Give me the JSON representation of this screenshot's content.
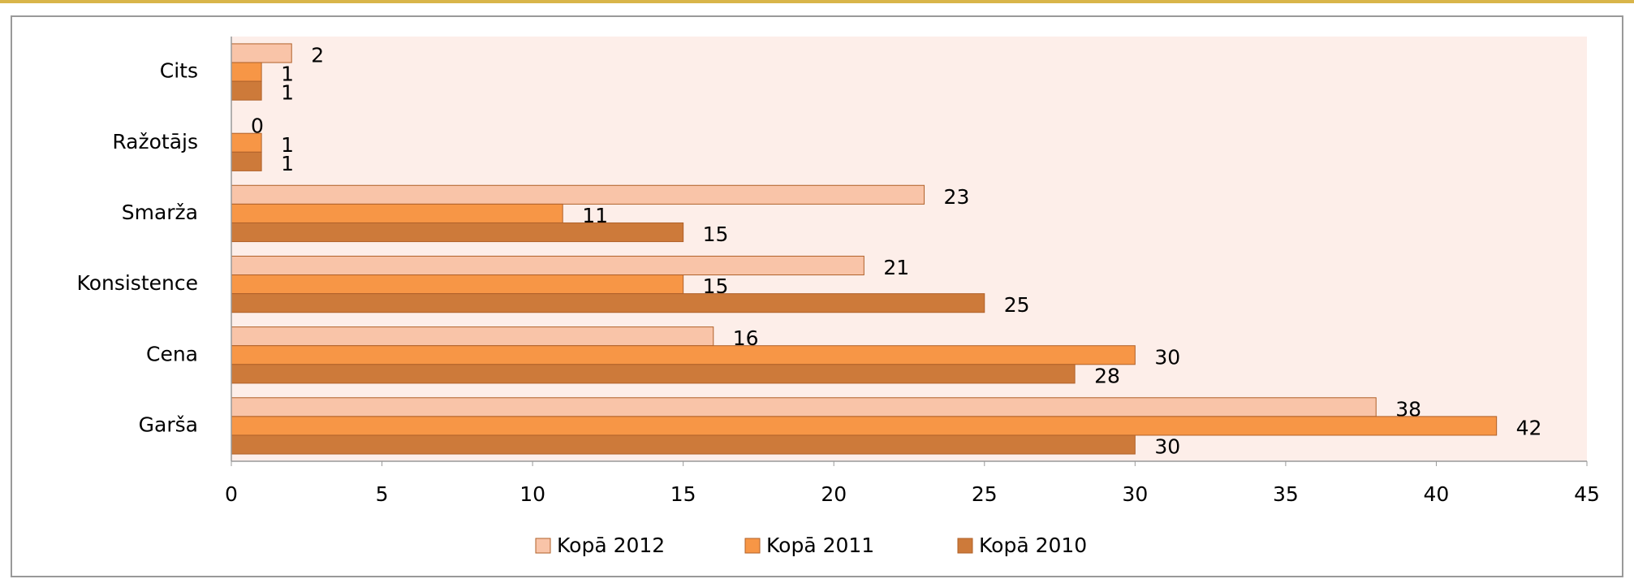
{
  "chart_data": {
    "type": "hbar",
    "categories": [
      "Garša",
      "Cena",
      "Konsistence",
      "Smarža",
      "Ražotājs",
      "Cits"
    ],
    "series": [
      {
        "name": "Kopā 2012",
        "color": "#f9c4a8",
        "values": [
          38,
          16,
          21,
          23,
          0,
          2
        ]
      },
      {
        "name": "Kopā 2011",
        "color": "#f79646",
        "values": [
          42,
          30,
          15,
          11,
          1,
          1
        ]
      },
      {
        "name": "Kopā 2010",
        "color": "#cd7a3a",
        "values": [
          30,
          28,
          25,
          15,
          1,
          1
        ]
      }
    ],
    "xlim": [
      0,
      45
    ],
    "xticks": [
      0,
      5,
      10,
      15,
      20,
      25,
      30,
      35,
      40,
      45
    ],
    "plot_background": "#fdeee9",
    "legend": "bottom"
  }
}
